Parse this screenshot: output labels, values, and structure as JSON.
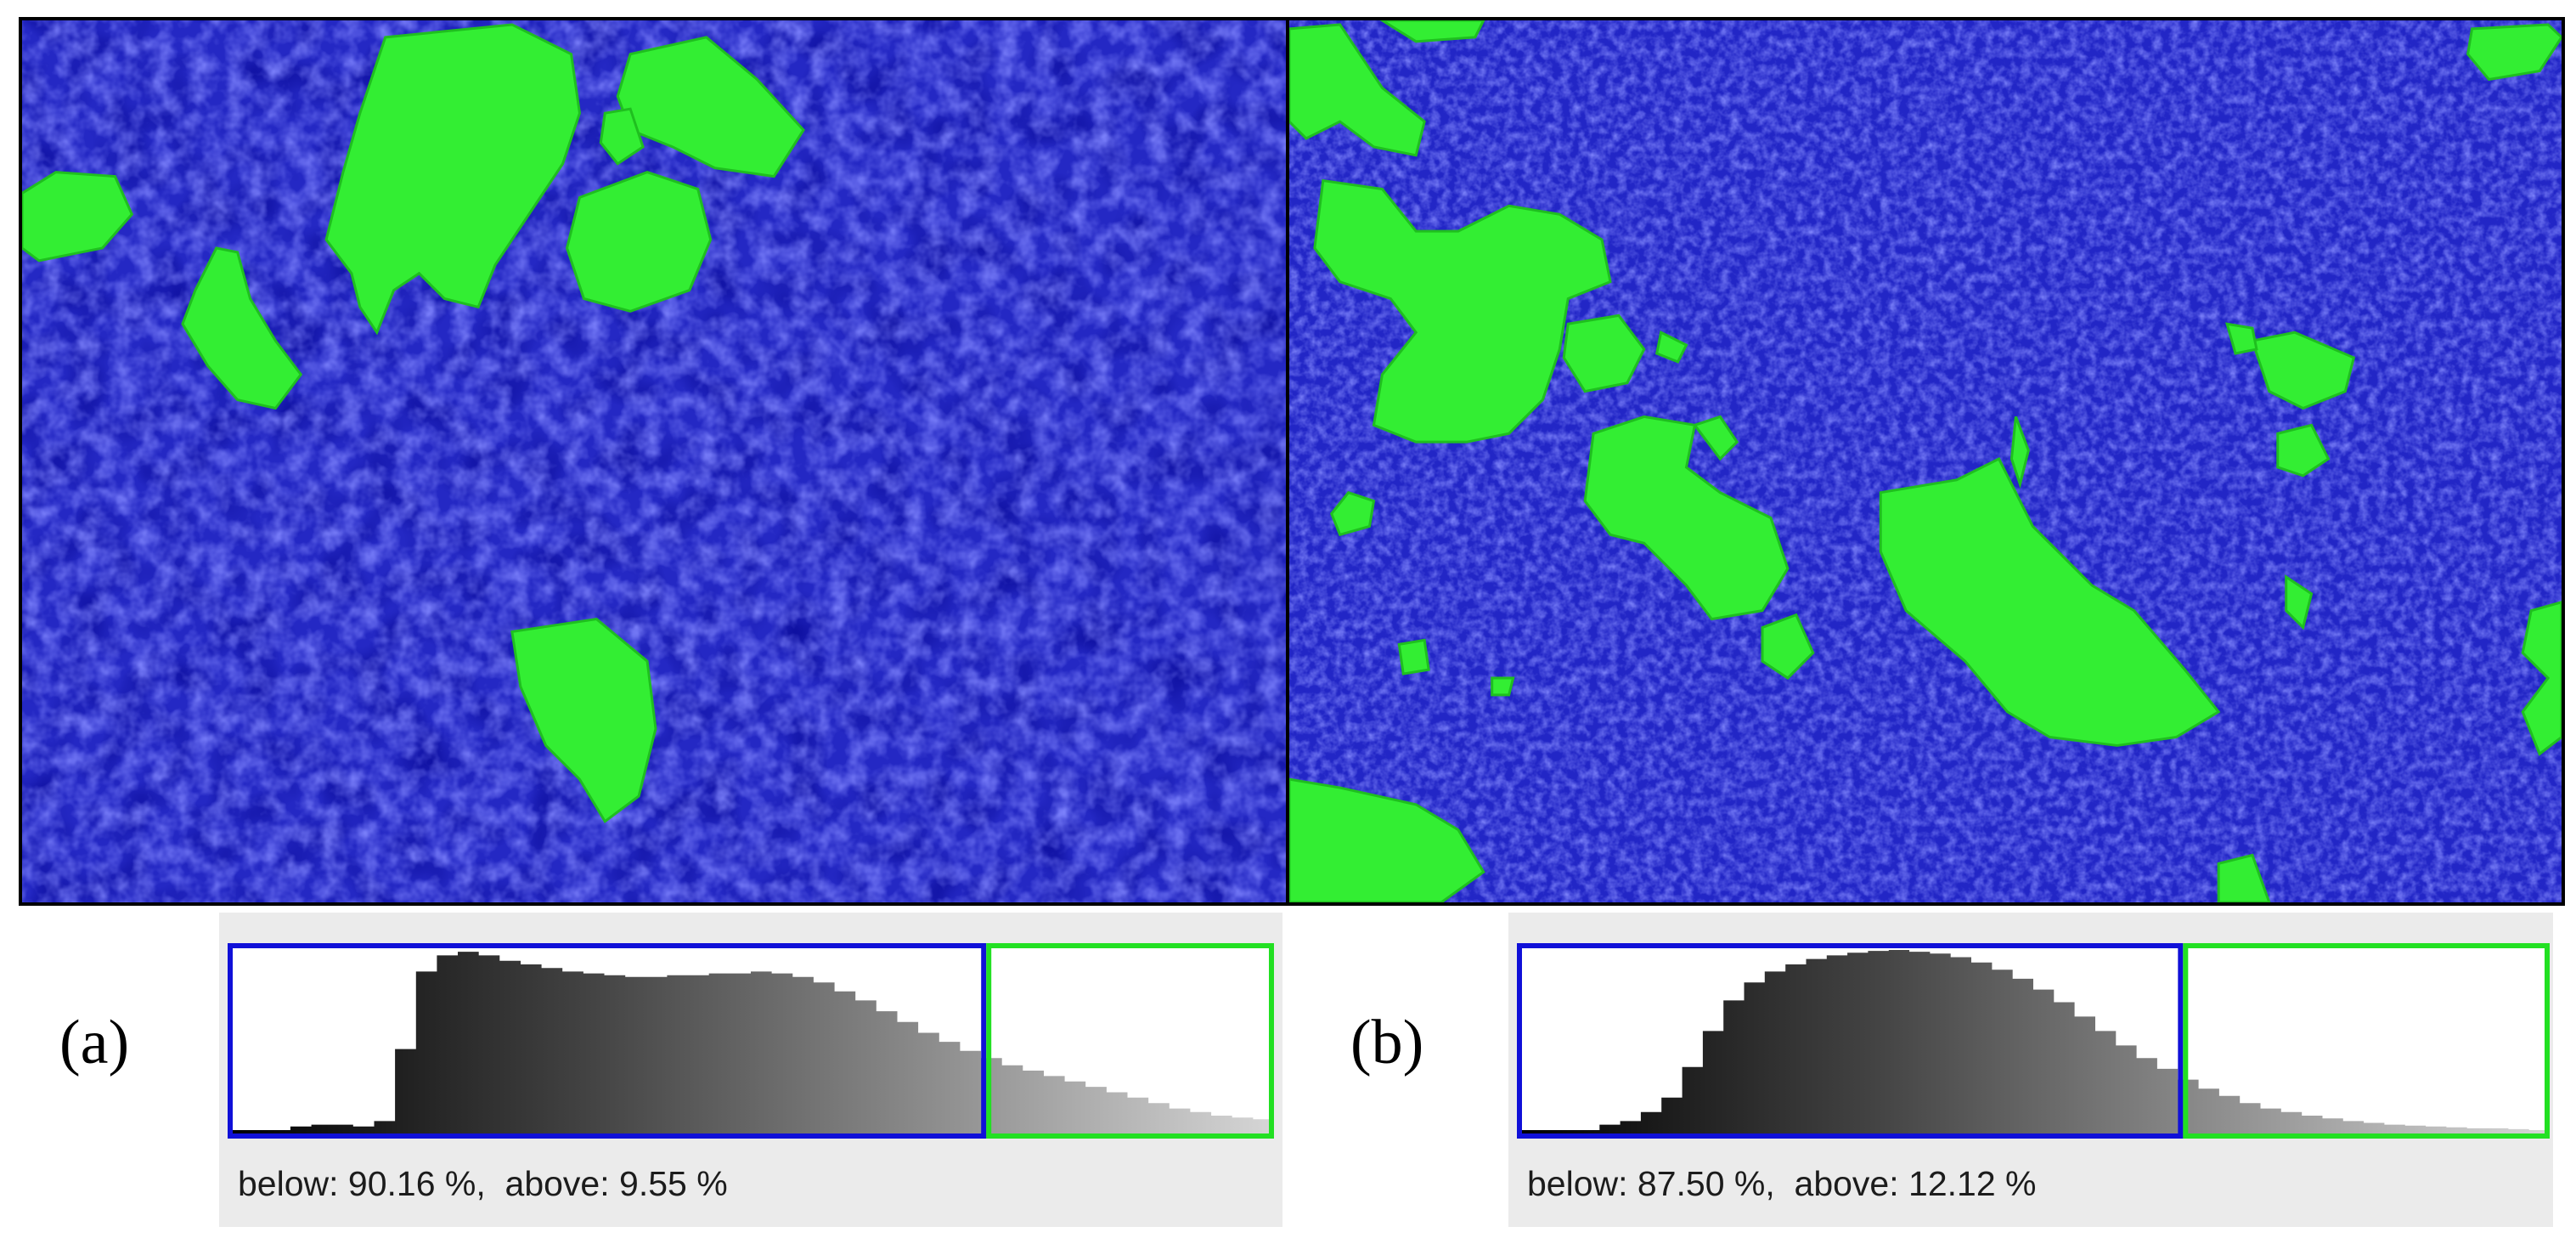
{
  "panels": [
    {
      "id": "a",
      "label": "(a)",
      "readout": "below: 90.16 %,  above: 9.55 %",
      "threshold_fraction": 0.725,
      "histogram_profile": [
        0,
        0,
        0,
        0.02,
        0.03,
        0.03,
        0.02,
        0.05,
        0.45,
        0.88,
        0.97,
        0.99,
        0.97,
        0.94,
        0.92,
        0.9,
        0.88,
        0.87,
        0.86,
        0.85,
        0.85,
        0.86,
        0.86,
        0.87,
        0.87,
        0.88,
        0.87,
        0.85,
        0.82,
        0.77,
        0.72,
        0.66,
        0.6,
        0.54,
        0.49,
        0.44,
        0.4,
        0.36,
        0.33,
        0.3,
        0.27,
        0.24,
        0.21,
        0.18,
        0.15,
        0.12,
        0.1,
        0.08,
        0.07,
        0.06
      ]
    },
    {
      "id": "b",
      "label": "(b)",
      "readout": "below: 87.50 %,  above: 12.12 %",
      "threshold_fraction": 0.645,
      "histogram_profile": [
        0,
        0,
        0,
        0,
        0.03,
        0.05,
        0.1,
        0.18,
        0.35,
        0.55,
        0.72,
        0.82,
        0.88,
        0.92,
        0.95,
        0.97,
        0.985,
        0.995,
        1,
        0.99,
        0.98,
        0.96,
        0.93,
        0.89,
        0.84,
        0.78,
        0.71,
        0.63,
        0.55,
        0.47,
        0.4,
        0.34,
        0.28,
        0.23,
        0.19,
        0.15,
        0.12,
        0.1,
        0.08,
        0.065,
        0.05,
        0.04,
        0.03,
        0.025,
        0.02,
        0.015,
        0.01,
        0.01,
        0.005,
        0
      ]
    }
  ],
  "colors": {
    "below": "#1010d8",
    "above": "#22e022",
    "background_phase": "#1a1fbf",
    "particle_phase": "#33ee33"
  }
}
